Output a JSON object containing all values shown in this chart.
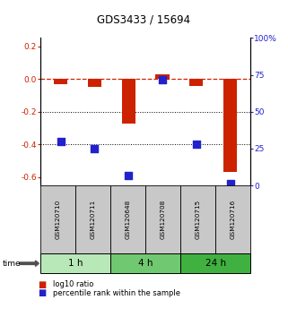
{
  "title": "GDS3433 / 15694",
  "samples": [
    "GSM120710",
    "GSM120711",
    "GSM120648",
    "GSM120708",
    "GSM120715",
    "GSM120716"
  ],
  "log10_ratio": [
    -0.03,
    -0.05,
    -0.27,
    0.03,
    -0.04,
    -0.57
  ],
  "percentile_rank": [
    30,
    25,
    7,
    72,
    28,
    1
  ],
  "time_groups": [
    {
      "label": "1 h",
      "indices": [
        0,
        1
      ],
      "color": "#b8e8b8"
    },
    {
      "label": "4 h",
      "indices": [
        2,
        3
      ],
      "color": "#70c870"
    },
    {
      "label": "24 h",
      "indices": [
        4,
        5
      ],
      "color": "#40b040"
    }
  ],
  "bar_color": "#cc2200",
  "dot_color": "#2222cc",
  "ref_line_color": "#cc2200",
  "grid_line_color": "#000000",
  "ylim_left": [
    -0.65,
    0.25
  ],
  "ylim_right": [
    0,
    100
  ],
  "yticks_left": [
    0.2,
    0.0,
    -0.2,
    -0.4,
    -0.6
  ],
  "yticks_right": [
    100,
    75,
    50,
    25,
    0
  ],
  "bar_width": 0.4,
  "dot_size": 28,
  "legend_red_label": "log10 ratio",
  "legend_blue_label": "percentile rank within the sample",
  "sample_box_color": "#c8c8c8",
  "time_arrow_color": "#505050"
}
